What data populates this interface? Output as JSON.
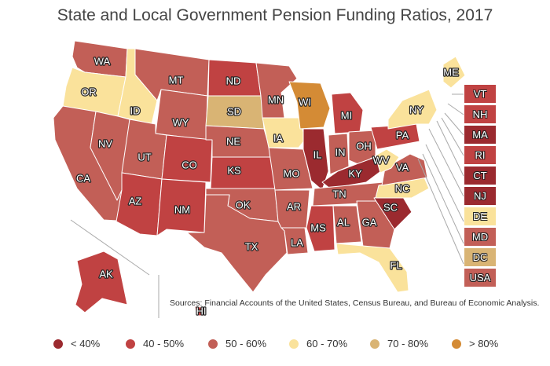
{
  "title": "State and Local Government Pension Funding Ratios, 2017",
  "source": "Sources: Financial Accounts of the United States, Census Bureau, and Bureau of Economic Analysis.",
  "colors": {
    "lt40": "#9b2a2f",
    "40to50": "#c04242",
    "50to60": "#c25f57",
    "60to70": "#fae29b",
    "70to80": "#d9b474",
    "gt80": "#d48b35"
  },
  "legend": [
    {
      "label": "< 40%",
      "color": "#9b2a2f"
    },
    {
      "label": "40 - 50%",
      "color": "#c04242"
    },
    {
      "label": "50 - 60%",
      "color": "#c25f57"
    },
    {
      "label": "60 - 70%",
      "color": "#fae29b"
    },
    {
      "label": "70 - 80%",
      "color": "#d9b474"
    },
    {
      "label": "> 80%",
      "color": "#d48b35"
    }
  ],
  "states": {
    "WA": {
      "label": "WA",
      "bin": "50to60"
    },
    "OR": {
      "label": "OR",
      "bin": "60to70"
    },
    "CA": {
      "label": "CA",
      "bin": "50to60"
    },
    "ID": {
      "label": "ID",
      "bin": "60to70"
    },
    "NV": {
      "label": "NV",
      "bin": "50to60"
    },
    "MT": {
      "label": "MT",
      "bin": "50to60"
    },
    "WY": {
      "label": "WY",
      "bin": "50to60"
    },
    "UT": {
      "label": "UT",
      "bin": "50to60"
    },
    "AZ": {
      "label": "AZ",
      "bin": "40to50"
    },
    "CO": {
      "label": "CO",
      "bin": "40to50"
    },
    "NM": {
      "label": "NM",
      "bin": "40to50"
    },
    "ND": {
      "label": "ND",
      "bin": "40to50"
    },
    "SD": {
      "label": "SD",
      "bin": "70to80"
    },
    "NE": {
      "label": "NE",
      "bin": "50to60"
    },
    "KS": {
      "label": "KS",
      "bin": "40to50"
    },
    "OK": {
      "label": "OK",
      "bin": "50to60"
    },
    "TX": {
      "label": "TX",
      "bin": "50to60"
    },
    "MN": {
      "label": "MN",
      "bin": "50to60"
    },
    "IA": {
      "label": "IA",
      "bin": "60to70"
    },
    "MO": {
      "label": "MO",
      "bin": "50to60"
    },
    "AR": {
      "label": "AR",
      "bin": "50to60"
    },
    "LA": {
      "label": "LA",
      "bin": "50to60"
    },
    "WI": {
      "label": "WI",
      "bin": "gt80"
    },
    "IL": {
      "label": "IL",
      "bin": "lt40"
    },
    "MI": {
      "label": "MI",
      "bin": "40to50"
    },
    "IN": {
      "label": "IN",
      "bin": "50to60"
    },
    "OH": {
      "label": "OH",
      "bin": "50to60"
    },
    "KY": {
      "label": "KY",
      "bin": "lt40"
    },
    "TN": {
      "label": "TN",
      "bin": "50to60"
    },
    "MS": {
      "label": "MS",
      "bin": "40to50"
    },
    "AL": {
      "label": "AL",
      "bin": "50to60"
    },
    "GA": {
      "label": "GA",
      "bin": "50to60"
    },
    "FL": {
      "label": "FL",
      "bin": "60to70"
    },
    "SC": {
      "label": "SC",
      "bin": "lt40"
    },
    "NC": {
      "label": "NC",
      "bin": "60to70"
    },
    "VA": {
      "label": "VA",
      "bin": "50to60"
    },
    "WV": {
      "label": "WV",
      "bin": "60to70"
    },
    "PA": {
      "label": "PA",
      "bin": "40to50"
    },
    "NY": {
      "label": "NY",
      "bin": "60to70"
    },
    "ME": {
      "label": "ME",
      "bin": "60to70"
    },
    "AK": {
      "label": "AK",
      "bin": "40to50"
    },
    "HI": {
      "label": "HI",
      "bin": "40to50"
    }
  },
  "side_states": [
    {
      "key": "VT",
      "label": "VT",
      "bin": "40to50"
    },
    {
      "key": "NH",
      "label": "NH",
      "bin": "40to50"
    },
    {
      "key": "MA",
      "label": "MA",
      "bin": "lt40"
    },
    {
      "key": "RI",
      "label": "RI",
      "bin": "40to50"
    },
    {
      "key": "CT",
      "label": "CT",
      "bin": "lt40"
    },
    {
      "key": "NJ",
      "label": "NJ",
      "bin": "lt40"
    },
    {
      "key": "DE",
      "label": "DE",
      "bin": "60to70"
    },
    {
      "key": "MD",
      "label": "MD",
      "bin": "50to60"
    },
    {
      "key": "DC",
      "label": "DC",
      "bin": "70to80"
    },
    {
      "key": "USA",
      "label": "USA",
      "bin": "50to60"
    }
  ]
}
